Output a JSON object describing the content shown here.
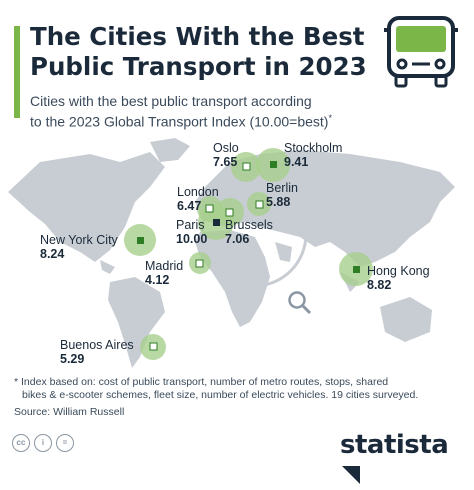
{
  "header": {
    "title_line1": "The Cities With the Best",
    "title_line2": "Public Transport in 2023",
    "subtitle_line1": "Cities with the best public transport according",
    "subtitle_line2": "to the 2023 Global Transport Index (10.00=best)",
    "subtitle_marker": "*",
    "icon": "bus-icon"
  },
  "chart_data": {
    "type": "map",
    "series": [
      {
        "city": "Oslo",
        "value": "7.65"
      },
      {
        "city": "Stockholm",
        "value": "9.41"
      },
      {
        "city": "London",
        "value": "6.47"
      },
      {
        "city": "Berlin",
        "value": "5.88"
      },
      {
        "city": "Paris",
        "value": "10.00"
      },
      {
        "city": "Brussels",
        "value": "7.06"
      },
      {
        "city": "New York City",
        "value": "8.24"
      },
      {
        "city": "Madrid",
        "value": "4.12"
      },
      {
        "city": "Hong Kong",
        "value": "8.82"
      },
      {
        "city": "Buenos Aires",
        "value": "5.29"
      }
    ]
  },
  "footer": {
    "footnote_line1": "* Index based on: cost of public transport, number of metro routes, stops, shared",
    "footnote_line2": "bikes & e-scooter schemes, fleet size, number of electric vehicles. 19 cities surveyed.",
    "source": "Source: William Russell",
    "cc_icons": [
      "cc",
      "i",
      "="
    ],
    "logo": "statista"
  },
  "colors": {
    "accent": "#7ab648",
    "bubble": "#a8d08d",
    "text": "#1b2a3a",
    "land": "#c8cdd3"
  }
}
